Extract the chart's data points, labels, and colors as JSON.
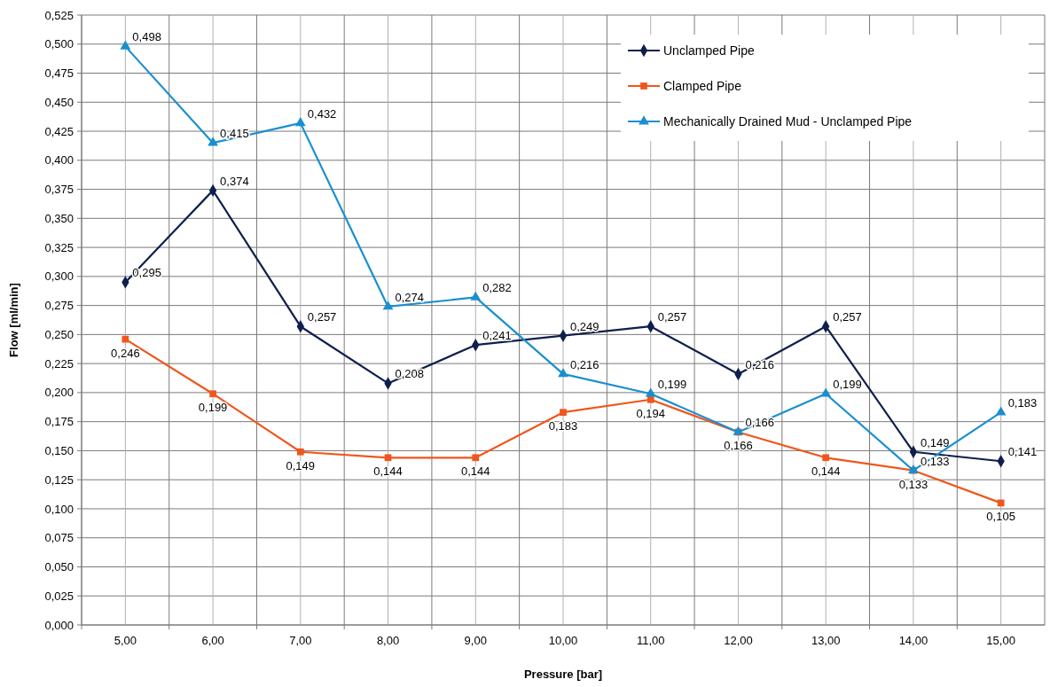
{
  "chart_data": {
    "type": "line",
    "xlabel": "Pressure [bar]",
    "ylabel": "Flow [ml/min]",
    "categories": [
      "5,00",
      "6,00",
      "7,00",
      "8,00",
      "9,00",
      "10,00",
      "11,00",
      "12,00",
      "13,00",
      "14,00",
      "15,00"
    ],
    "ylim": [
      0,
      0.525
    ],
    "yticks": [
      {
        "value": 0,
        "label": "0,000"
      },
      {
        "value": 0.025,
        "label": "0,025"
      },
      {
        "value": 0.05,
        "label": "0,050"
      },
      {
        "value": 0.075,
        "label": "0,075"
      },
      {
        "value": 0.1,
        "label": "0,100"
      },
      {
        "value": 0.125,
        "label": "0,125"
      },
      {
        "value": 0.15,
        "label": "0,150"
      },
      {
        "value": 0.175,
        "label": "0,175"
      },
      {
        "value": 0.2,
        "label": "0,200"
      },
      {
        "value": 0.225,
        "label": "0,225"
      },
      {
        "value": 0.25,
        "label": "0,250"
      },
      {
        "value": 0.275,
        "label": "0,275"
      },
      {
        "value": 0.3,
        "label": "0,300"
      },
      {
        "value": 0.325,
        "label": "0,325"
      },
      {
        "value": 0.35,
        "label": "0,350"
      },
      {
        "value": 0.375,
        "label": "0,375"
      },
      {
        "value": 0.4,
        "label": "0,400"
      },
      {
        "value": 0.425,
        "label": "0,425"
      },
      {
        "value": 0.45,
        "label": "0,450"
      },
      {
        "value": 0.475,
        "label": "0,475"
      },
      {
        "value": 0.5,
        "label": "0,500"
      },
      {
        "value": 0.525,
        "label": "0,525"
      }
    ],
    "grid": true,
    "legend": "top right",
    "line_style": "solid",
    "series": [
      {
        "name": "Unclamped Pipe",
        "color": "#0e1f4d",
        "marker": "diamond",
        "values": [
          0.295,
          0.374,
          0.257,
          0.208,
          0.241,
          0.249,
          0.257,
          0.216,
          0.257,
          0.149,
          0.141
        ],
        "value_labels": [
          "0,295",
          "0,374",
          "0,257",
          "0,208",
          "0,241",
          "0,249",
          "0,257",
          "0,216",
          "0,257",
          "0,149",
          "0,141"
        ]
      },
      {
        "name": "Clamped Pipe",
        "color": "#f0561c",
        "marker": "square",
        "values": [
          0.246,
          0.199,
          0.149,
          0.144,
          0.144,
          0.183,
          0.194,
          0.166,
          0.144,
          0.133,
          0.105
        ],
        "value_labels": [
          "0,246",
          "0,199",
          "0,149",
          "0,144",
          "0,144",
          "0,183",
          "0,194",
          "0,166",
          "0,144",
          "0,133",
          "0,105"
        ]
      },
      {
        "name": "Mechanically Drained Mud - Unclamped Pipe",
        "color": "#1a8fd0",
        "marker": "triangle",
        "values": [
          0.498,
          0.415,
          0.432,
          0.274,
          0.282,
          0.216,
          0.199,
          0.166,
          0.199,
          0.133,
          0.183
        ],
        "value_labels": [
          "0,498",
          "0,415",
          "0,432",
          "0,274",
          "0,282",
          "0,216",
          "0,199",
          "0,166",
          "0,199",
          "0,133",
          "0,183"
        ]
      }
    ]
  }
}
